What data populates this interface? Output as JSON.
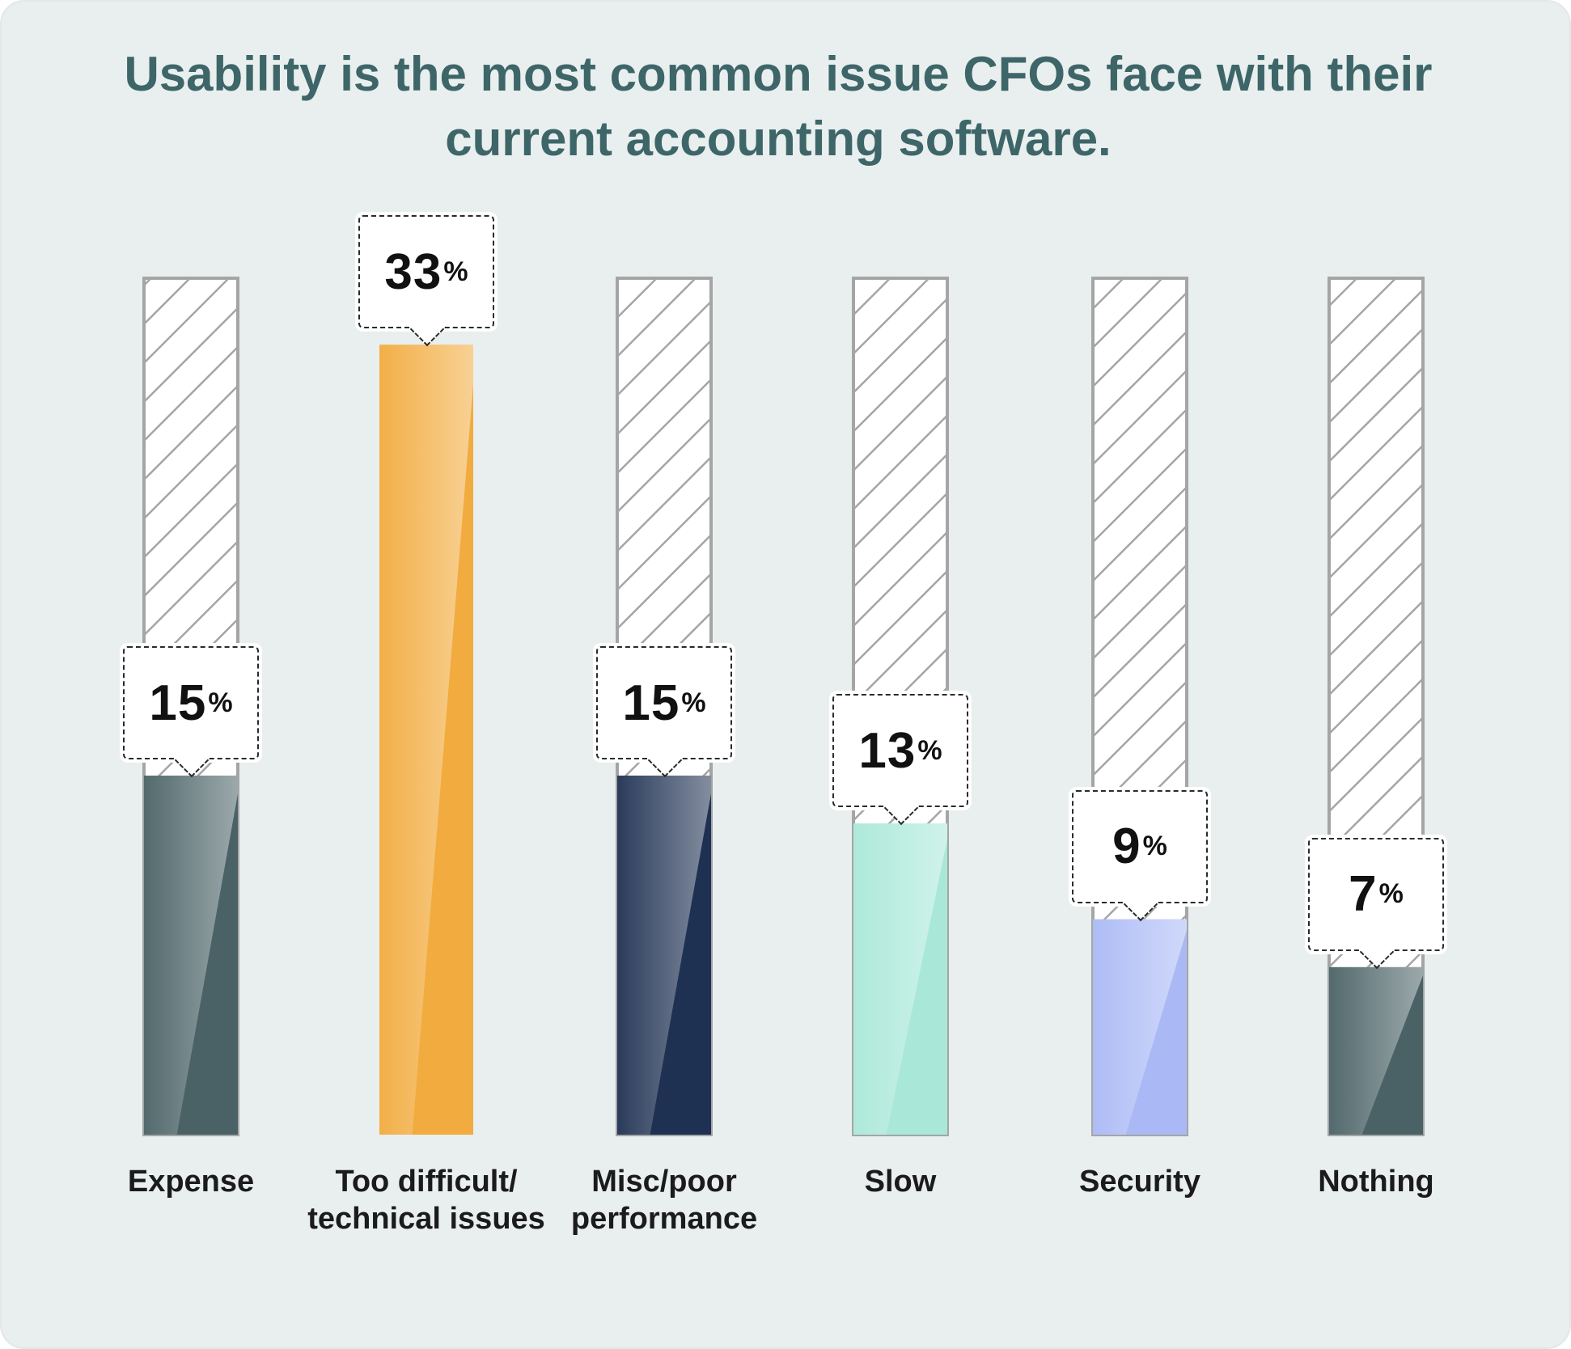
{
  "chart_data": {
    "type": "bar",
    "title": "Usability is the most common issue CFOs face with their current accounting software.",
    "categories": [
      "Expense",
      "Too difficult/ technical issues",
      "Misc/poor performance",
      "Slow",
      "Security",
      "Nothing"
    ],
    "category_lines": [
      [
        "Expense"
      ],
      [
        "Too difficult/",
        "technical issues"
      ],
      [
        "Misc/poor",
        "performance"
      ],
      [
        "Slow"
      ],
      [
        "Security"
      ],
      [
        "Nothing"
      ]
    ],
    "values": [
      15,
      33,
      15,
      13,
      9,
      7
    ],
    "value_suffix": "%",
    "ylim": [
      0,
      36
    ],
    "colors": [
      "#4a6266",
      "#f2ab3e",
      "#1f3152",
      "#a9e8d8",
      "#aab9f5",
      "#4a6266"
    ],
    "grid": false,
    "legend": "none"
  }
}
